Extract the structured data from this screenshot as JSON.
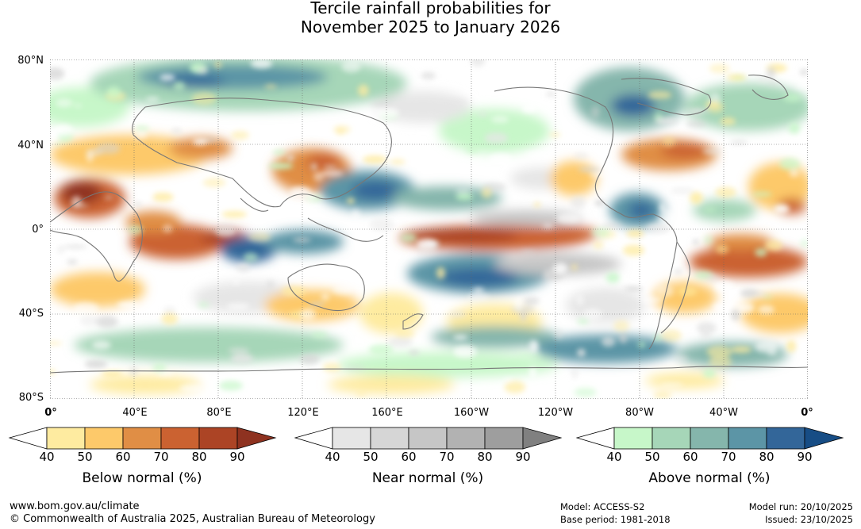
{
  "title": {
    "line1": "Tercile rainfall probabilities for",
    "line2": "November 2025 to January 2026"
  },
  "map": {
    "lat_labels": [
      "80°N",
      "40°N",
      "0°",
      "40°S",
      "80°S"
    ],
    "lon_labels": [
      "0°",
      "40°E",
      "80°E",
      "120°E",
      "160°E",
      "160°W",
      "120°W",
      "80°W",
      "40°W",
      "0°"
    ]
  },
  "colorbars": [
    {
      "name": "below",
      "label": "Below normal (%)",
      "ticks": [
        "40",
        "50",
        "60",
        "70",
        "80",
        "90"
      ],
      "colors": [
        "#ffffff",
        "#feeba0",
        "#fdc96a",
        "#e08e45",
        "#cb6231",
        "#ac4425",
        "#8e3220"
      ]
    },
    {
      "name": "near",
      "label": "Near normal (%)",
      "ticks": [
        "40",
        "50",
        "60",
        "70",
        "80",
        "90"
      ],
      "colors": [
        "#ffffff",
        "#e6e6e6",
        "#d6d6d6",
        "#c6c6c6",
        "#b2b2b2",
        "#9e9e9e",
        "#808080"
      ]
    },
    {
      "name": "above",
      "label": "Above normal (%)",
      "ticks": [
        "40",
        "50",
        "60",
        "70",
        "80",
        "90"
      ],
      "colors": [
        "#ffffff",
        "#c7f7c9",
        "#a6d6b8",
        "#85b6ac",
        "#5c95a6",
        "#336699",
        "#174d85"
      ]
    }
  ],
  "footer": {
    "website": "www.bom.gov.au/climate",
    "copyright": "© Commonwealth of Australia 2025, Australian Bureau of Meteorology",
    "model": "Model: ACCESS-S2",
    "base_period": "Base period: 1981-2018",
    "model_run": "Model run: 20/10/2025",
    "issued": "Issued: 23/10/2025"
  }
}
